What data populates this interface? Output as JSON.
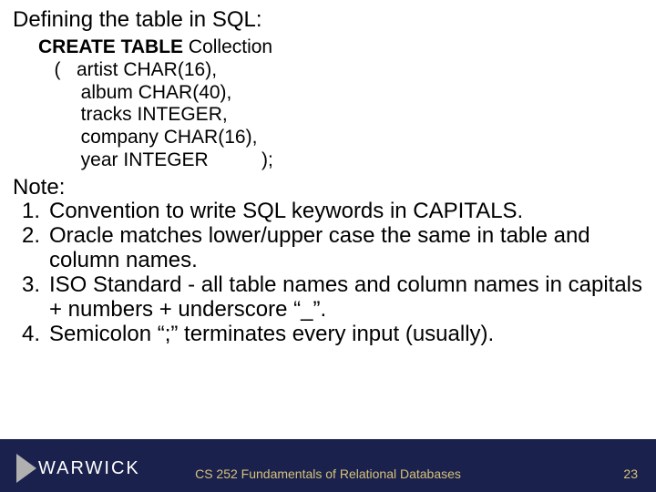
{
  "heading": "Defining the table in SQL:",
  "code": {
    "kw_create": "CREATE TABLE",
    "table_name": " Collection",
    "l2": "   (   artist CHAR(16),",
    "l3": "        album CHAR(40),",
    "l4": "        tracks INTEGER,",
    "l5": "        company CHAR(16),",
    "l6": "        year INTEGER          );"
  },
  "notes": {
    "title": "Note:",
    "items": [
      {
        "n": "1.",
        "t": "Convention to write SQL keywords in CAPITALS."
      },
      {
        "n": "2.",
        "t": "Oracle matches lower/upper case the same in table and column names."
      },
      {
        "n": "3.",
        "t": "ISO Standard - all table names and column names in capitals + numbers + underscore “_”."
      },
      {
        "n": "4.",
        "t": "Semicolon “;” terminates every input (usually)."
      }
    ]
  },
  "footer": {
    "logo": "WARWICK",
    "course": "CS 252 Fundamentals of Relational Databases",
    "page": "23"
  },
  "colors": {
    "footer_bg": "#1a214d",
    "footer_text": "#d6c27a",
    "logo_text": "#ffffff",
    "body_text": "#000000"
  }
}
